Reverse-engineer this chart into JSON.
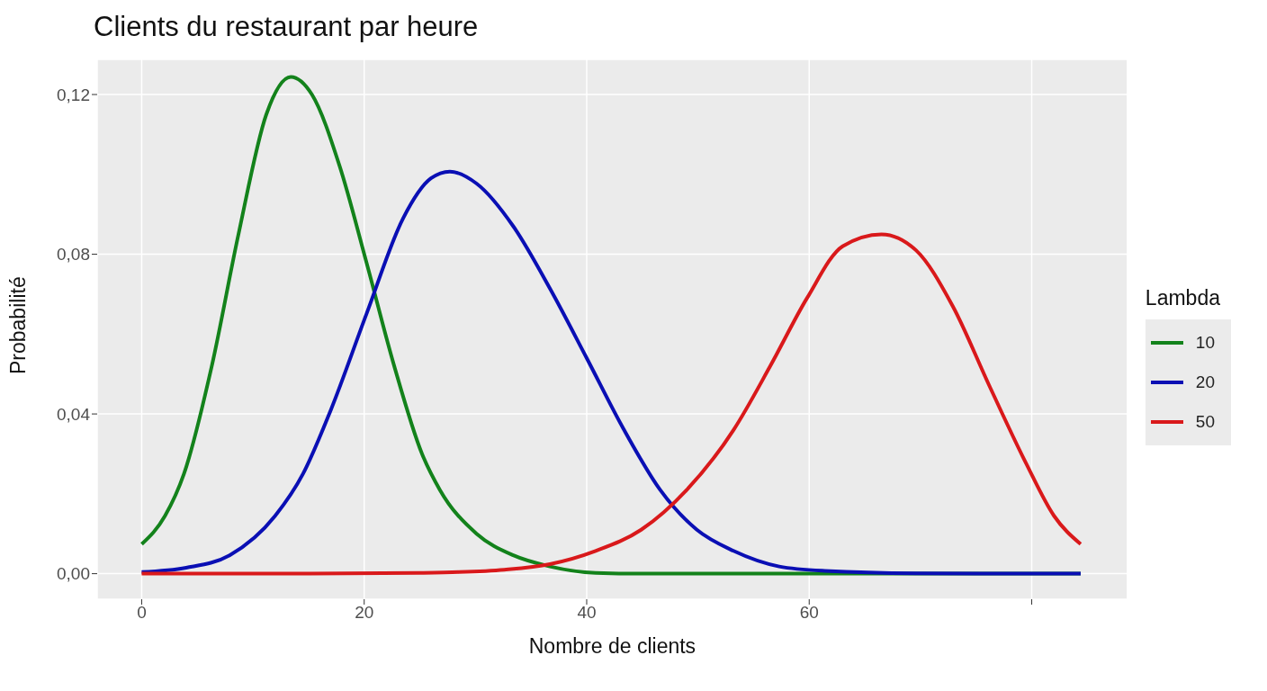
{
  "chart_data": {
    "type": "line",
    "title": "Clients du restaurant par heure",
    "xlabel": "Nombre de clients",
    "ylabel": "Probabilité",
    "legend_title": "Lambda",
    "legend": "right",
    "grid": true,
    "line_style": "solid",
    "marker": "none",
    "xlim": [
      -4,
      88.6
    ],
    "xticks": [
      0,
      20,
      40,
      60,
      {
        "value": 80,
        "label": null
      }
    ],
    "ylim": [
      -0.0064,
      0.1288
    ],
    "yticks": [
      {
        "value": 0,
        "label": "0,00"
      },
      {
        "value": 0.04,
        "label": "0,04"
      },
      {
        "value": 0.08,
        "label": "0,08"
      },
      {
        "value": 0.12,
        "label": "0,12"
      }
    ],
    "series": [
      {
        "name": "10",
        "color": "#13821b",
        "x": [
          0,
          2.1,
          3.8,
          6.3,
          8.7,
          11.2,
          13.4,
          15.3,
          17.8,
          20.2,
          22.7,
          25.2,
          26.8,
          30.1,
          33.4,
          36.7,
          40.8,
          45,
          55,
          70,
          84.4
        ],
        "values": [
          0.0074,
          0.0145,
          0.025,
          0.052,
          0.085,
          0.115,
          0.1244,
          0.12,
          0.102,
          0.078,
          0.052,
          0.03,
          0.021,
          0.01,
          0.0046,
          0.0018,
          0.0002,
          0,
          0,
          0,
          0
        ]
      },
      {
        "name": "20",
        "color": "#0a0fb4",
        "x": [
          0,
          4,
          7.9,
          12,
          14.5,
          17,
          20.2,
          23.5,
          26,
          27.7,
          30.1,
          33.4,
          36.7,
          40,
          43.3,
          46.6,
          49.9,
          53.2,
          57.3,
          61.4,
          69.6,
          84.4
        ],
        "values": [
          0.0004,
          0.0015,
          0.0046,
          0.0145,
          0.025,
          0.041,
          0.065,
          0.089,
          0.099,
          0.1007,
          0.0977,
          0.087,
          0.0714,
          0.054,
          0.0363,
          0.021,
          0.011,
          0.0057,
          0.0018,
          0.0007,
          0.0001,
          0
        ]
      },
      {
        "name": "50",
        "color": "#d9191b",
        "x": [
          0,
          15,
          25,
          28.5,
          32.6,
          36.7,
          40.8,
          44.9,
          49,
          53.2,
          56.5,
          59.8,
          63,
          66.5,
          69.6,
          72.9,
          76.2,
          79.5,
          82,
          84.4
        ],
        "values": [
          0,
          0,
          0.0002,
          0.0004,
          0.001,
          0.0024,
          0.0057,
          0.011,
          0.021,
          0.036,
          0.052,
          0.069,
          0.082,
          0.085,
          0.081,
          0.067,
          0.047,
          0.0276,
          0.0145,
          0.0074
        ]
      }
    ]
  }
}
